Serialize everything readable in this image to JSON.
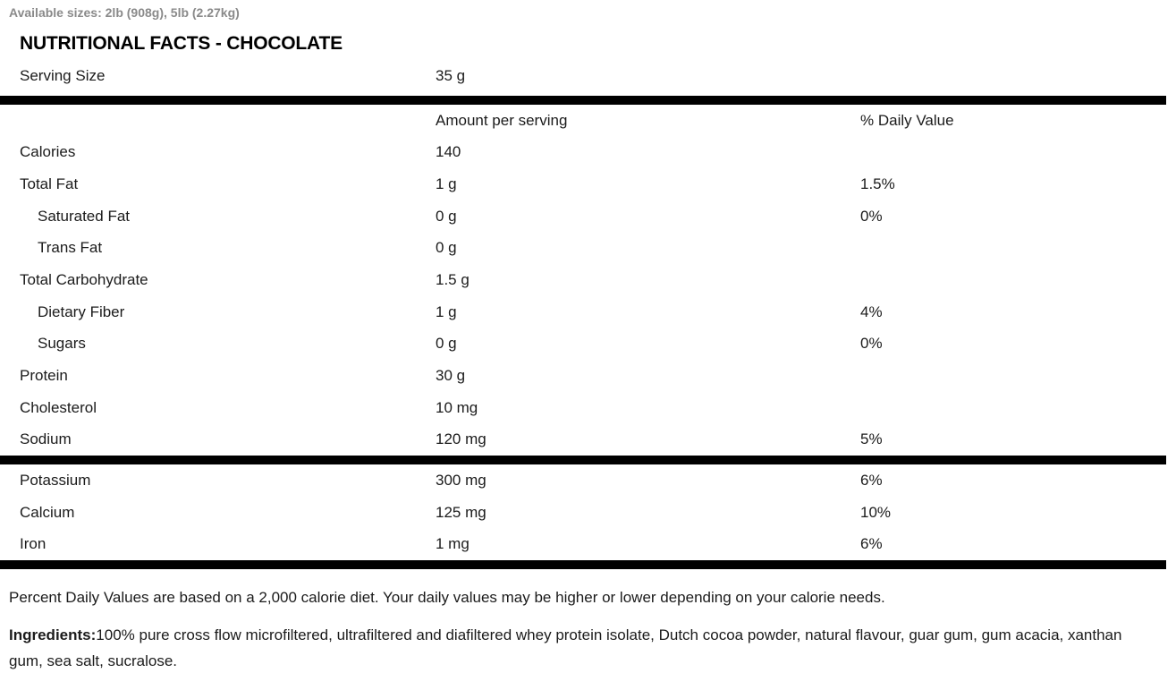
{
  "page": {
    "available_sizes": "Available sizes: 2lb (908g), 5lb (2.27kg)"
  },
  "table": {
    "title": "NUTRITIONAL FACTS - CHOCOLATE",
    "serving_size": {
      "label": "Serving Size",
      "value": "35 g"
    },
    "columns": {
      "amount": "Amount per serving",
      "daily_value": "% Daily Value"
    },
    "rows": [
      {
        "label": "Calories",
        "amount": "140",
        "dv": ""
      },
      {
        "label": "Total Fat",
        "amount": "1 g",
        "dv": "1.5%"
      },
      {
        "label": "Saturated Fat",
        "amount": "0 g",
        "dv": "0%"
      },
      {
        "label": "Trans Fat",
        "amount": "0 g",
        "dv": ""
      },
      {
        "label": "Total Carbohydrate",
        "amount": "1.5 g",
        "dv": ""
      },
      {
        "label": "Dietary Fiber",
        "amount": "1 g",
        "dv": "4%"
      },
      {
        "label": "Sugars",
        "amount": "0 g",
        "dv": "0%"
      },
      {
        "label": "Protein",
        "amount": "30 g",
        "dv": ""
      },
      {
        "label": "Cholesterol",
        "amount": "10 mg",
        "dv": ""
      },
      {
        "label": "Sodium",
        "amount": "120 mg",
        "dv": "5%"
      }
    ],
    "mineral_rows": [
      {
        "label": "Potassium",
        "amount": "300 mg",
        "dv": "6%"
      },
      {
        "label": "Calcium",
        "amount": "125 mg",
        "dv": "10%"
      },
      {
        "label": "Iron",
        "amount": "1 mg",
        "dv": "6%"
      }
    ]
  },
  "footer": {
    "daily_value_note": "Percent Daily Values are based on a 2,000 calorie diet. Your daily values may be higher or lower depending on your calorie needs.",
    "ingredients_label": "Ingredients:",
    "ingredients_text": "100% pure cross flow microfiltered, ultrafiltered and diafiltered whey protein isolate, Dutch cocoa powder, natural flavour, guar gum, gum acacia, xanthan gum, sea salt, sucralose."
  },
  "colors": {
    "text": "#1b1b1b",
    "muted_gray": "#8a8a8a",
    "separator_bar": "#000000"
  }
}
